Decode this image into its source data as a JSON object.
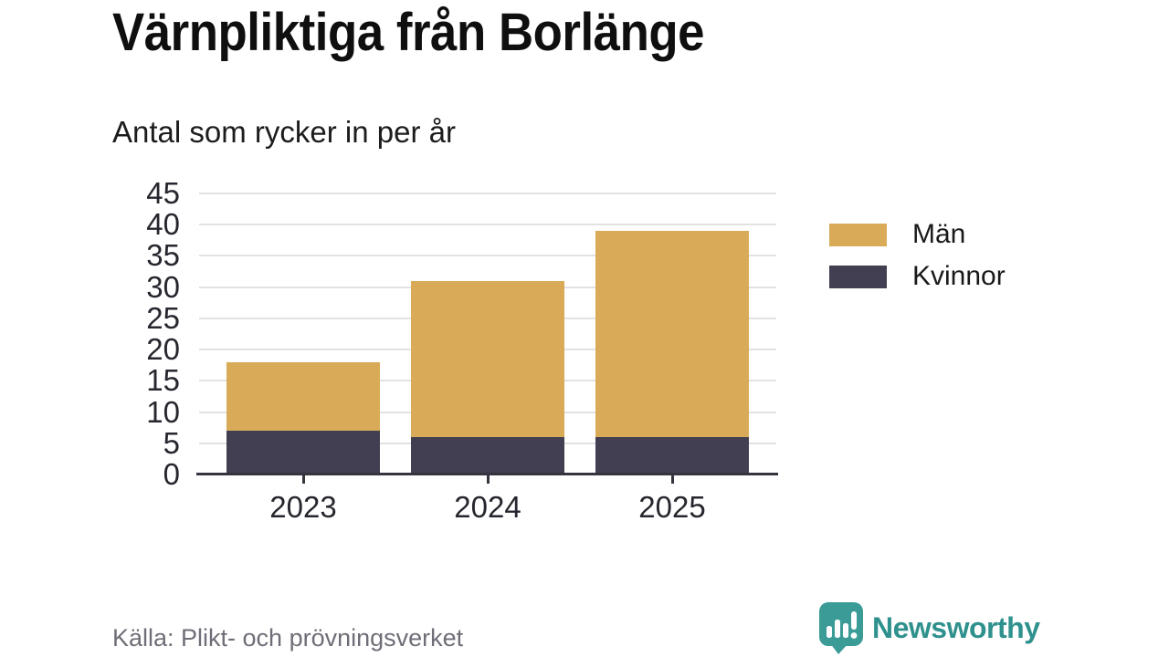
{
  "chart_data": {
    "type": "bar",
    "stacked": true,
    "title": "Värnpliktiga från Borlänge",
    "subtitle": "Antal som rycker in per år",
    "categories": [
      "2023",
      "2024",
      "2025"
    ],
    "series": [
      {
        "name": "Män",
        "color": "#d9ab58",
        "values": [
          11,
          25,
          33
        ]
      },
      {
        "name": "Kvinnor",
        "color": "#413f51",
        "values": [
          7,
          6,
          6
        ]
      }
    ],
    "totals": [
      18,
      31,
      39
    ],
    "ylim": [
      0,
      45
    ],
    "yticks": [
      0,
      5,
      10,
      15,
      20,
      25,
      30,
      35,
      40,
      45
    ],
    "xlabel": "",
    "ylabel": "",
    "grid": true,
    "legend_position": "right"
  },
  "footer": {
    "source": "Källa: Plikt- och prövningsverket",
    "brand": "Newsworthy"
  },
  "colors": {
    "men": "#d9ab58",
    "women": "#413f51",
    "axis": "#35343f",
    "grid": "#e2e2e2",
    "title_text": "#0f0f0f",
    "source_text": "#6e6e78",
    "brand_teal": "#3a9b97",
    "brand_text": "#2f918d"
  }
}
